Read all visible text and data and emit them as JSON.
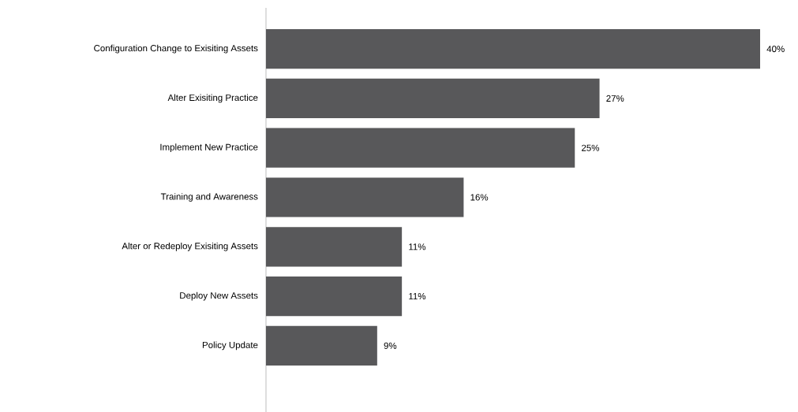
{
  "chart_data": {
    "type": "bar",
    "orientation": "horizontal",
    "categories": [
      "Configuration Change to Exisiting Assets",
      "Alter Exisiting Practice",
      "Implement New Practice",
      "Training and Awareness",
      "Alter or Redeploy Exisiting Assets",
      "Deploy New Assets",
      "Policy Update"
    ],
    "values": [
      40,
      27,
      25,
      16,
      11,
      11,
      9
    ],
    "value_labels": [
      "40%",
      "27%",
      "25%",
      "16%",
      "11%",
      "11%",
      "9%"
    ],
    "color": "#58585a"
  }
}
